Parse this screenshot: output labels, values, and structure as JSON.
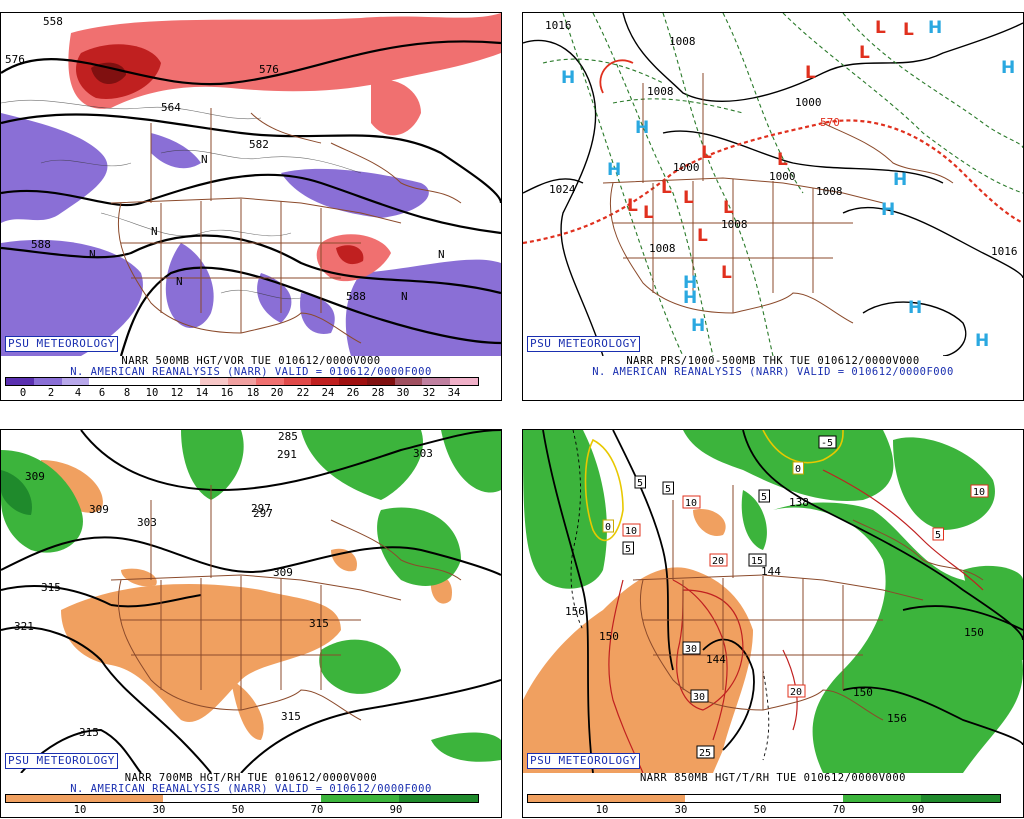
{
  "brand": "PSU METEOROLOGY",
  "colors": {
    "border_brown": "#8b4a2b",
    "vort_blue": "#8a6fd6",
    "vort_red": "#e04a4a",
    "high_blue": "#2aa8e0",
    "low_red": "#e0301e",
    "dry_orange": "#f0a060",
    "moist_green": "#3cb43c",
    "caption_blue": "#1a2fb0"
  },
  "panels": [
    {
      "caption1": "NARR 500MB HGT/VOR TUE 010612/0000V000",
      "caption2": "N. AMERICAN REANALYSIS (NARR) VALID = 010612/0000F000",
      "scale_labels": [
        "0",
        "2",
        "4",
        "6",
        "8",
        "10",
        "12",
        "14",
        "16",
        "18",
        "20",
        "22",
        "24",
        "26",
        "28",
        "30",
        "32",
        "34"
      ],
      "map_labels": [
        "576",
        "558",
        "582",
        "588",
        "588",
        "564",
        "576",
        "N",
        "N",
        "N",
        "N",
        "N",
        "N"
      ]
    },
    {
      "caption1": "NARR PRS/1000-500MB THK TUE 010612/0000V000",
      "caption2": "N. AMERICAN REANALYSIS (NARR) VALID = 010612/0000F000",
      "map_labels": [
        "1016",
        "1008",
        "1008",
        "1000",
        "1000",
        "1024",
        "1008",
        "1008",
        "1016",
        "1000",
        "1008",
        "570"
      ],
      "highs": [
        "H",
        "H",
        "H",
        "H",
        "H",
        "H",
        "H",
        "H",
        "H",
        "H",
        "H",
        "H"
      ],
      "lows": [
        "L",
        "L",
        "L",
        "L",
        "L",
        "L",
        "L",
        "L",
        "L",
        "L",
        "L",
        "L",
        "L"
      ]
    },
    {
      "caption1": "NARR 700MB HGT/RH TUE 010612/0000V000",
      "caption2": "N. AMERICAN REANALYSIS (NARR) VALID = 010612/0000F000",
      "scale_labels": [
        "10",
        "30",
        "50",
        "70",
        "90"
      ],
      "map_labels": [
        "285",
        "291",
        "297",
        "303",
        "309",
        "309",
        "315",
        "321",
        "309",
        "315",
        "315",
        "303",
        "297",
        "315"
      ]
    },
    {
      "caption1": "NARR 850MB HGT/T/RH TUE 010612/0000V000",
      "scale_labels": [
        "10",
        "30",
        "50",
        "70",
        "90"
      ],
      "map_labels": [
        "156",
        "150",
        "144",
        "150",
        "156",
        "150",
        "138",
        "144"
      ],
      "boxed_labels": [
        "-5",
        "0",
        "5",
        "5",
        "10",
        "0",
        "5",
        "5",
        "15",
        "20",
        "10",
        "10",
        "30",
        "30",
        "20",
        "25",
        "5"
      ]
    }
  ]
}
